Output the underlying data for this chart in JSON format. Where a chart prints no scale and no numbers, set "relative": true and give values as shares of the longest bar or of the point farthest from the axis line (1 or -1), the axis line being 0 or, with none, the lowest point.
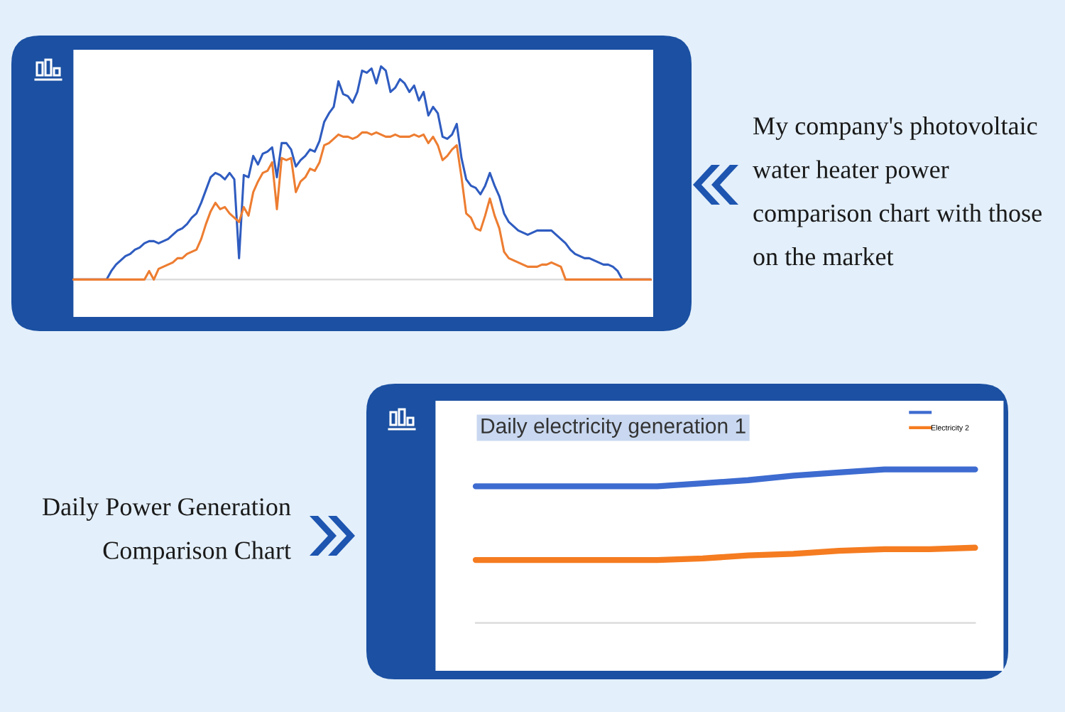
{
  "chart_data": [
    {
      "type": "line",
      "relative": true,
      "categories": [
        null,
        null,
        null,
        null,
        null,
        null,
        null,
        null,
        null,
        null,
        null,
        null,
        null,
        null,
        null,
        null,
        null,
        null,
        null,
        null,
        null,
        null,
        null,
        null,
        null,
        null,
        null,
        null,
        null,
        null,
        null,
        null,
        null,
        null,
        null,
        null,
        null,
        null,
        null,
        null,
        null,
        null,
        null,
        null,
        null,
        null,
        null,
        null,
        null,
        null,
        null,
        null,
        null,
        null,
        null,
        null,
        null,
        null,
        null,
        null,
        null,
        null,
        null,
        null,
        null,
        null,
        null,
        null,
        null,
        null,
        null,
        null,
        null,
        null,
        null,
        null,
        null,
        null,
        null,
        null,
        null,
        null,
        null,
        null,
        null,
        null,
        null,
        null,
        null,
        null,
        null,
        null,
        null,
        null,
        null,
        null,
        null,
        null,
        null,
        null,
        null,
        null,
        null,
        null,
        null,
        null,
        null,
        null,
        null,
        null,
        null,
        null,
        null,
        null,
        null,
        null,
        null,
        null,
        null,
        null,
        null,
        null,
        null
      ],
      "series": [
        {
          "color": "#2f5cc0",
          "values": [
            0,
            0,
            0,
            0,
            0,
            0,
            0,
            0,
            0.04,
            0.07,
            0.09,
            0.11,
            0.12,
            0.14,
            0.15,
            0.17,
            0.18,
            0.18,
            0.17,
            0.18,
            0.19,
            0.21,
            0.23,
            0.24,
            0.26,
            0.29,
            0.31,
            0.36,
            0.42,
            0.48,
            0.5,
            0.49,
            0.47,
            0.5,
            0.47,
            0.1,
            0.49,
            0.48,
            0.58,
            0.54,
            0.59,
            0.6,
            0.62,
            0.48,
            0.64,
            0.64,
            0.61,
            0.53,
            0.56,
            0.58,
            0.61,
            0.6,
            0.65,
            0.74,
            0.78,
            0.81,
            0.93,
            0.87,
            0.86,
            0.83,
            0.88,
            0.98,
            0.97,
            0.99,
            0.92,
            1,
            0.98,
            0.88,
            0.9,
            0.94,
            0.92,
            0.88,
            0.91,
            0.84,
            0.88,
            0.77,
            0.81,
            0.78,
            0.67,
            0.66,
            0.68,
            0.73,
            0.57,
            0.47,
            0.44,
            0.43,
            0.4,
            0.44,
            0.5,
            0.44,
            0.39,
            0.31,
            0.27,
            0.25,
            0.23,
            0.22,
            0.21,
            0.22,
            0.23,
            0.23,
            0.23,
            0.23,
            0.21,
            0.19,
            0.17,
            0.14,
            0.12,
            0.11,
            0.1,
            0.1,
            0.09,
            0.08,
            0.07,
            0.07,
            0.06,
            0.04,
            0,
            0,
            0,
            0,
            0,
            0,
            0
          ]
        },
        {
          "color": "#ed7d31",
          "values": [
            0,
            0,
            0,
            0,
            0,
            0,
            0,
            0,
            0,
            0,
            0,
            0,
            0,
            0,
            0,
            0,
            0.04,
            0,
            0.05,
            0.06,
            0.07,
            0.08,
            0.1,
            0.1,
            0.12,
            0.13,
            0.14,
            0.19,
            0.26,
            0.32,
            0.36,
            0.33,
            0.34,
            0.31,
            0.29,
            0.27,
            0.34,
            0.3,
            0.41,
            0.46,
            0.5,
            0.51,
            0.55,
            0.33,
            0.57,
            0.56,
            0.57,
            0.41,
            0.46,
            0.48,
            0.52,
            0.51,
            0.55,
            0.63,
            0.64,
            0.66,
            0.68,
            0.67,
            0.67,
            0.66,
            0.67,
            0.69,
            0.69,
            0.68,
            0.69,
            0.68,
            0.67,
            0.67,
            0.68,
            0.67,
            0.67,
            0.67,
            0.68,
            0.67,
            0.68,
            0.64,
            0.67,
            0.63,
            0.56,
            0.58,
            0.61,
            0.63,
            0.48,
            0.31,
            0.29,
            0.24,
            0.23,
            0.3,
            0.38,
            0.3,
            0.24,
            0.13,
            0.1,
            0.09,
            0.08,
            0.07,
            0.06,
            0.06,
            0.06,
            0.07,
            0.07,
            0.08,
            0.07,
            0.06,
            0,
            0,
            0,
            0,
            0,
            0,
            0,
            0,
            0,
            0,
            0,
            0,
            0,
            0,
            0,
            0,
            0,
            0,
            0
          ]
        }
      ]
    },
    {
      "type": "other",
      "title": "My company's photovoltaic water heater power comparison chart with those on the market"
    },
    {
      "type": "other",
      "title": "Daily Power Generation Comparison Chart"
    },
    {
      "type": "line",
      "relative": true,
      "title": "Daily electricity generation 1",
      "legend": "top right",
      "categories": [
        null,
        null,
        null,
        null,
        null,
        null,
        null,
        null,
        null,
        null,
        null,
        null
      ],
      "series": [
        {
          "color": "#3d6bd0",
          "values": [
            0.89,
            0.89,
            0.89,
            0.89,
            0.89,
            0.91,
            0.93,
            0.96,
            0.98,
            1,
            1,
            1
          ]
        },
        {
          "name": "Electricity 2",
          "color": "#f57c20",
          "values": [
            0.41,
            0.41,
            0.41,
            0.41,
            0.41,
            0.42,
            0.44,
            0.45,
            0.47,
            0.48,
            0.48,
            0.49
          ]
        }
      ]
    }
  ]
}
